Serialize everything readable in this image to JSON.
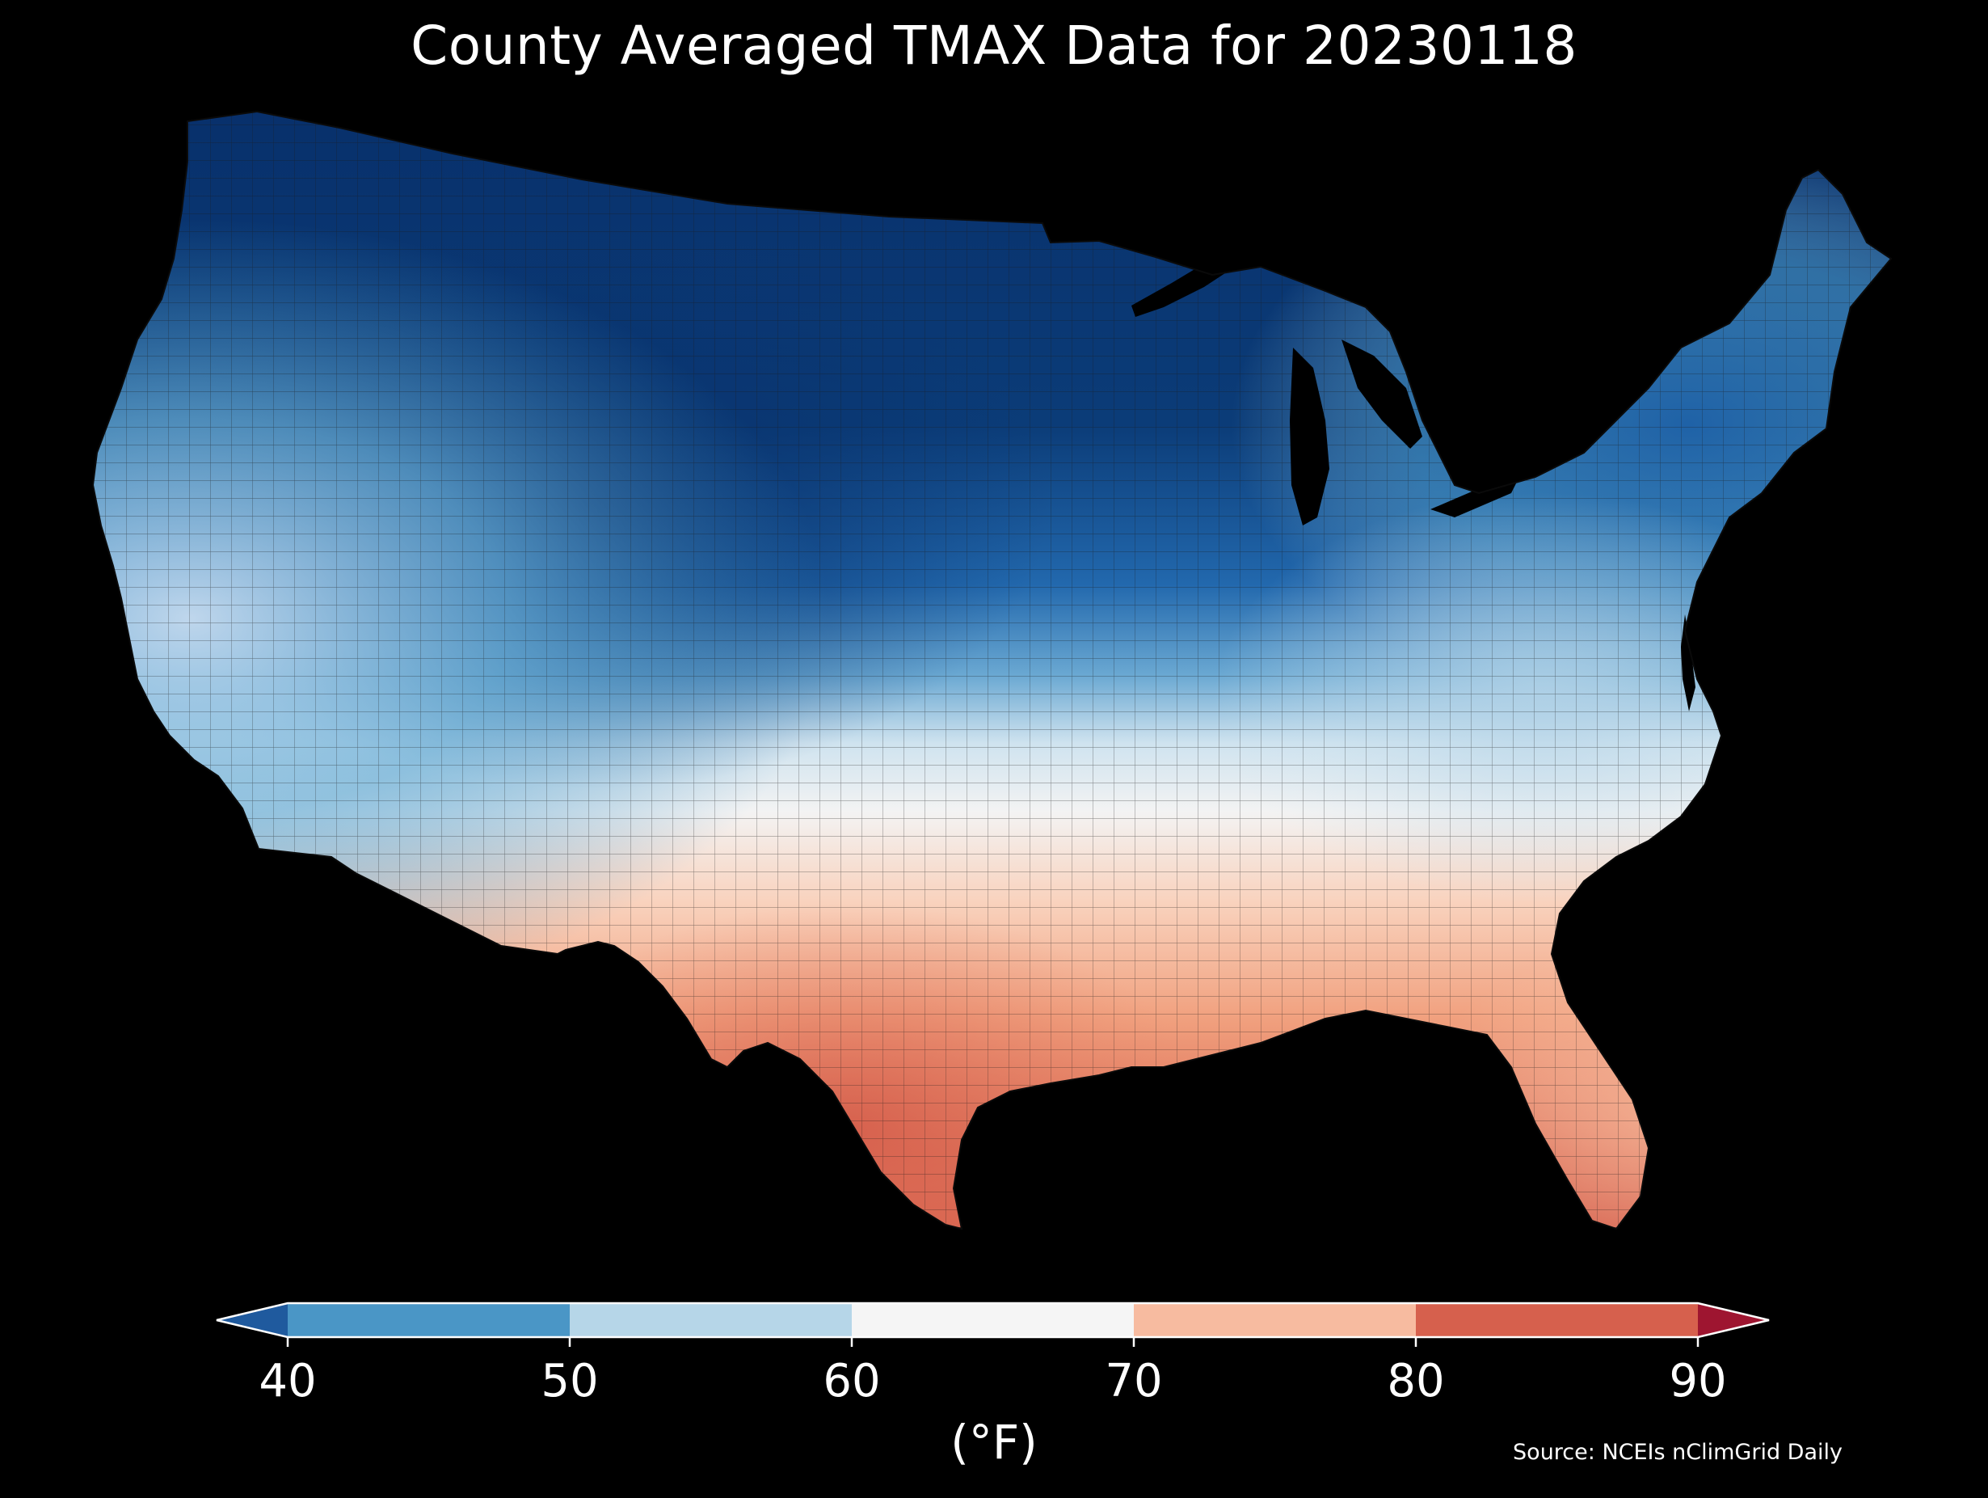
{
  "title": "County Averaged TMAX Data for 20230118",
  "source": "Source: NCEIs nClimGrid Daily",
  "colorbar": {
    "unit_label": "(°F)",
    "ticks": [
      "40",
      "50",
      "60",
      "70",
      "80",
      "90"
    ],
    "extend": "both",
    "bins": [
      {
        "range": "<40",
        "color": "#1f5a9e"
      },
      {
        "range": "40-50",
        "color": "#4a96c6"
      },
      {
        "range": "50-60",
        "color": "#b6d6e8"
      },
      {
        "range": "60-70",
        "color": "#f5f5f5"
      },
      {
        "range": "70-80",
        "color": "#f7bba0"
      },
      {
        "range": "80-90",
        "color": "#d6604d"
      },
      {
        "range": ">90",
        "color": "#9e1530"
      }
    ]
  },
  "map": {
    "region": "Contiguous United States",
    "background": "#000000",
    "regions_temperature": [
      {
        "region": "Northern Plains / Upper Midwest",
        "color": "#08306b",
        "value_range": "<40"
      },
      {
        "region": "Rockies / Great Basin",
        "color": "#0d3f7a",
        "value_range": "<40"
      },
      {
        "region": "Northeast",
        "color": "#2e6fb0",
        "value_range": "<40 to 40-50"
      },
      {
        "region": "Pacific Northwest",
        "color": "#4a96c6",
        "value_range": "40-50"
      },
      {
        "region": "California coast",
        "color": "#9ecae1",
        "value_range": "50-60"
      },
      {
        "region": "Ohio Valley / Mid-Atlantic",
        "color": "#d6e7f1",
        "value_range": "50-60"
      },
      {
        "region": "Southern Plains / Tennessee Valley",
        "color": "#f5f5f5",
        "value_range": "60-70"
      },
      {
        "region": "Gulf Coast / Southeast",
        "color": "#f7bba0",
        "value_range": "70-80"
      },
      {
        "region": "South Texas",
        "color": "#d6604d",
        "value_range": "80-90"
      },
      {
        "region": "Florida",
        "color": "#f4a582",
        "value_range": "70-80"
      }
    ]
  }
}
